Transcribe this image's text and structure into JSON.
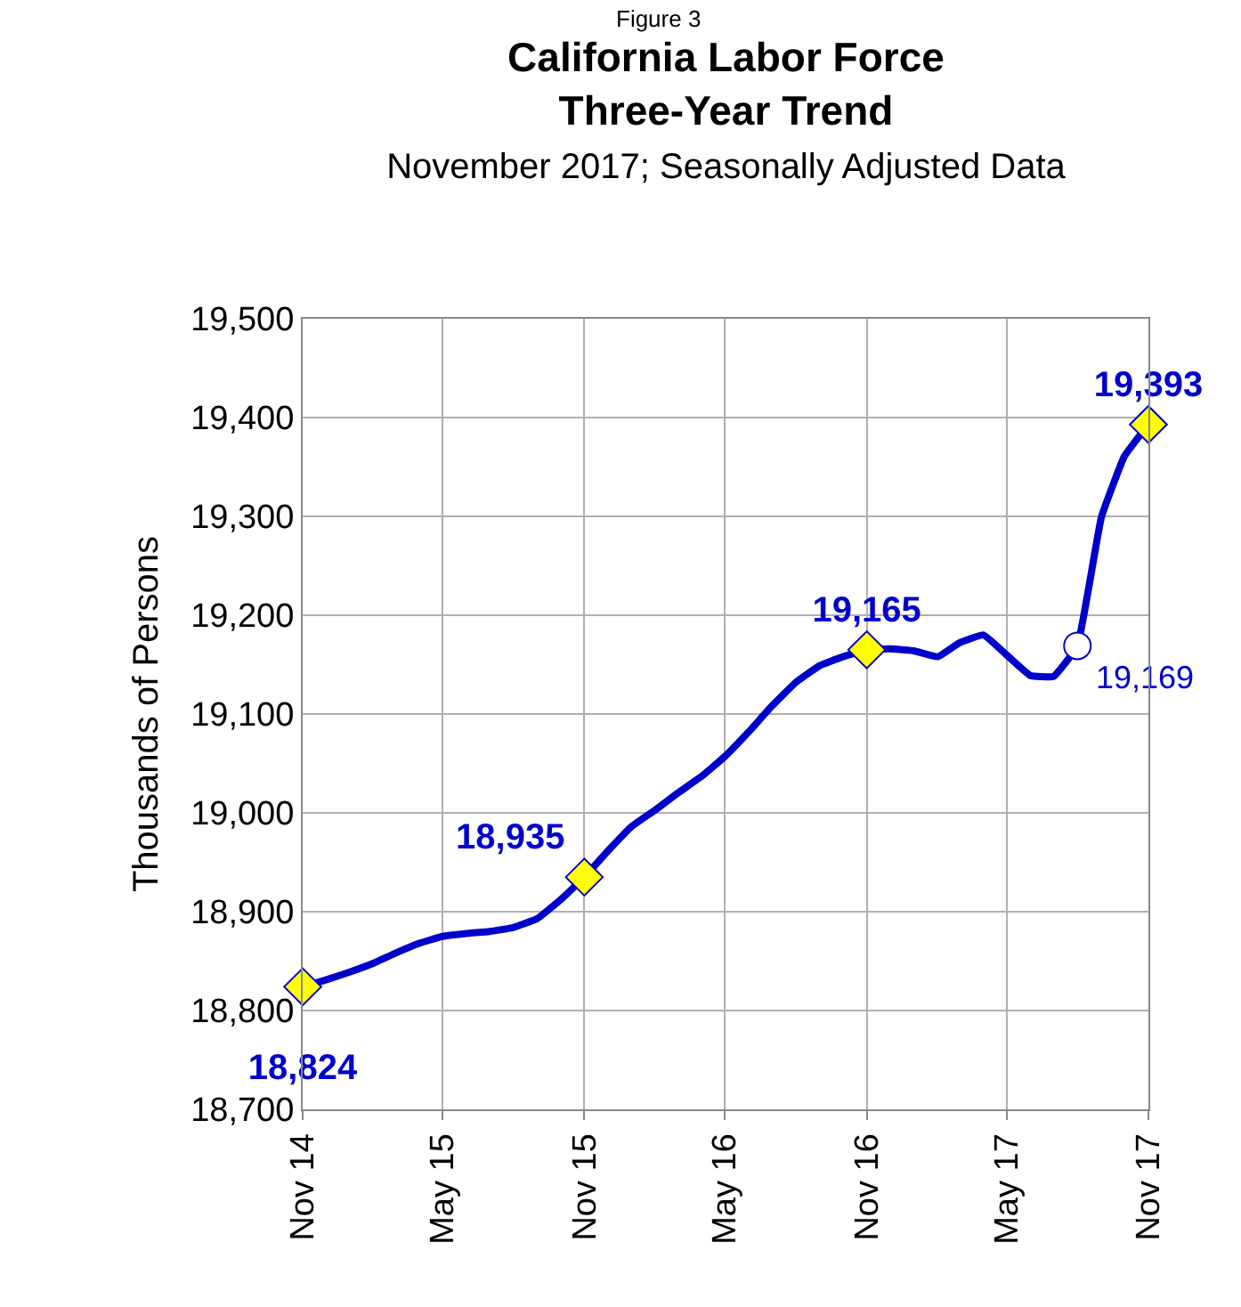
{
  "chart_data": {
    "type": "line",
    "title": "California Labor Force\nThree-Year Trend",
    "subtitle": "November 2017; Seasonally Adjusted Data",
    "ylabel": "Thousands of Persons",
    "annotations": [
      "Figure 3"
    ],
    "x": [
      "2014-11",
      "2014-12",
      "2015-01",
      "2015-02",
      "2015-03",
      "2015-04",
      "2015-05",
      "2015-06",
      "2015-07",
      "2015-08",
      "2015-09",
      "2015-10",
      "2015-11",
      "2015-12",
      "2016-01",
      "2016-02",
      "2016-03",
      "2016-04",
      "2016-05",
      "2016-06",
      "2016-07",
      "2016-08",
      "2016-09",
      "2016-10",
      "2016-11",
      "2016-12",
      "2017-01",
      "2017-02",
      "2017-03",
      "2017-04",
      "2017-05",
      "2017-06",
      "2017-07",
      "2017-08",
      "2017-09",
      "2017-10",
      "2017-11"
    ],
    "series": [
      {
        "color": "#0000cc",
        "line_style": "solid",
        "marker": "none",
        "values": [
          18824,
          18831,
          18839,
          18848,
          18858,
          18868,
          18875,
          18878,
          18880,
          18884,
          18893,
          18912,
          18935,
          18961,
          18986,
          19003,
          19020,
          19037,
          19057,
          19082,
          19108,
          19132,
          19149,
          19158,
          19165,
          19166,
          19164,
          19158,
          19172,
          19180,
          19160,
          19139,
          19138,
          19169,
          19299,
          19361,
          19393
        ]
      },
      {
        "type": "scatter",
        "marker": "diamond",
        "color": "#ffff00",
        "x": [
          "2014-11",
          "2015-11",
          "2016-11",
          "2017-11"
        ],
        "values": [
          18824,
          18935,
          19165,
          19393
        ],
        "value_labels": [
          "18,824",
          "18,935",
          "19,165",
          "19,393"
        ]
      },
      {
        "type": "scatter",
        "marker": "circle",
        "color": "#ffffff",
        "x": [
          "2017-08"
        ],
        "values": [
          19169
        ],
        "value_labels": [
          "19,169"
        ]
      }
    ],
    "xlim": [
      "2014-11",
      "2017-11"
    ],
    "xticks": [
      {
        "value": "2014-11",
        "label": "Nov 14"
      },
      {
        "value": "2015-05",
        "label": "May 15"
      },
      {
        "value": "2015-11",
        "label": "Nov 15"
      },
      {
        "value": "2016-05",
        "label": "May 16"
      },
      {
        "value": "2016-11",
        "label": "Nov 16"
      },
      {
        "value": "2017-05",
        "label": "May 17"
      },
      {
        "value": "2017-11",
        "label": "Nov 17"
      }
    ],
    "ylim": [
      18700,
      19500
    ],
    "yticks": [
      {
        "value": 18700,
        "label": "18,700"
      },
      {
        "value": 18800,
        "label": "18,800"
      },
      {
        "value": 18900,
        "label": "18,900"
      },
      {
        "value": 19000,
        "label": "19,000"
      },
      {
        "value": 19100,
        "label": "19,100"
      },
      {
        "value": 19200,
        "label": "19,200"
      },
      {
        "value": 19300,
        "label": "19,300"
      },
      {
        "value": 19400,
        "label": "19,400"
      },
      {
        "value": 19500,
        "label": "19,500"
      }
    ],
    "grid": true
  }
}
